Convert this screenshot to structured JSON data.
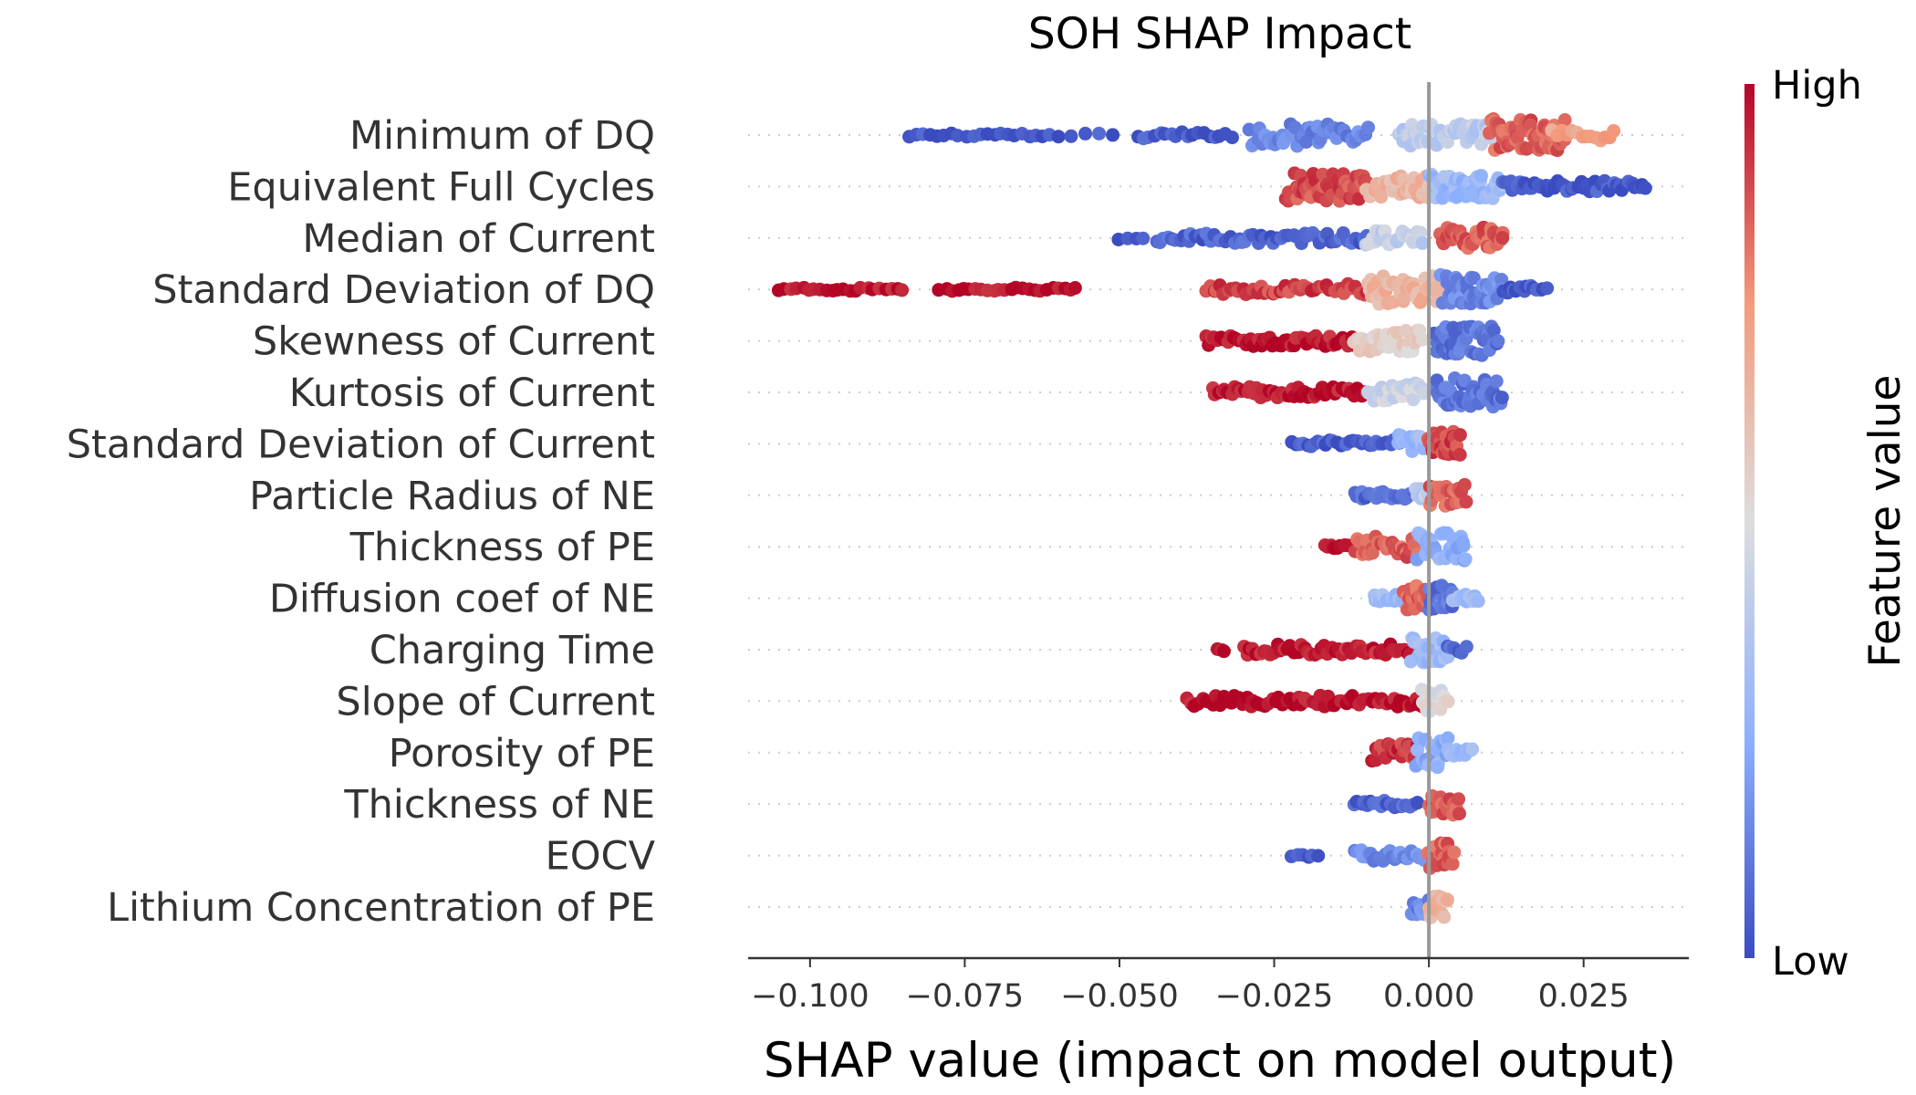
{
  "chart_data": {
    "type": "scatter",
    "title": "SOH SHAP Impact",
    "xlabel": "SHAP value (impact on model output)",
    "ylabel": "",
    "xlim": [
      -0.11,
      0.042
    ],
    "x_ticks": [
      -0.1,
      -0.075,
      -0.05,
      -0.025,
      0.0,
      0.025
    ],
    "x_tick_labels": [
      "−0.100",
      "−0.075",
      "−0.050",
      "−0.025",
      "0.000",
      "0.025"
    ],
    "zero_line": 0.0,
    "grid": false,
    "colorbar": {
      "title": "Feature value",
      "high_label": "High",
      "low_label": "Low",
      "colormap": "coolwarm",
      "low_color": "#3b4cc0",
      "mid_color": "#dddddd",
      "high_color": "#b40426"
    },
    "features": [
      {
        "name": "Minimum of DQ",
        "segments": [
          {
            "x0": -0.084,
            "x1": -0.06,
            "v": 0.02,
            "n": 22,
            "spread": 0.1
          },
          {
            "x0": -0.058,
            "x1": -0.051,
            "v": 0.02,
            "n": 4,
            "spread": 0.1
          },
          {
            "x0": -0.047,
            "x1": -0.032,
            "v": 0.03,
            "n": 18,
            "spread": 0.2
          },
          {
            "x0": -0.029,
            "x1": -0.01,
            "v": 0.15,
            "n": 45,
            "spread": 0.6
          },
          {
            "x0": -0.005,
            "x1": 0.01,
            "v": 0.4,
            "n": 45,
            "spread": 0.6
          },
          {
            "x0": 0.01,
            "x1": 0.022,
            "v": 0.85,
            "n": 60,
            "spread": 0.9
          },
          {
            "x0": 0.02,
            "x1": 0.03,
            "v": 0.7,
            "n": 14,
            "spread": 0.3
          }
        ]
      },
      {
        "name": "Equivalent Full Cycles",
        "segments": [
          {
            "x0": -0.023,
            "x1": -0.01,
            "v": 0.88,
            "n": 55,
            "spread": 0.8
          },
          {
            "x0": -0.01,
            "x1": 0.0,
            "v": 0.65,
            "n": 35,
            "spread": 0.6
          },
          {
            "x0": 0.0,
            "x1": 0.012,
            "v": 0.3,
            "n": 50,
            "spread": 0.7
          },
          {
            "x0": 0.012,
            "x1": 0.035,
            "v": 0.03,
            "n": 45,
            "spread": 0.3
          }
        ]
      },
      {
        "name": "Median of Current",
        "segments": [
          {
            "x0": -0.05,
            "x1": -0.046,
            "v": 0.02,
            "n": 4,
            "spread": 0.1
          },
          {
            "x0": -0.044,
            "x1": -0.01,
            "v": 0.06,
            "n": 55,
            "spread": 0.3
          },
          {
            "x0": -0.01,
            "x1": -0.001,
            "v": 0.42,
            "n": 25,
            "spread": 0.4
          },
          {
            "x0": 0.002,
            "x1": 0.012,
            "v": 0.85,
            "n": 45,
            "spread": 0.6
          }
        ]
      },
      {
        "name": "Standard Deviation of DQ",
        "segments": [
          {
            "x0": -0.105,
            "x1": -0.085,
            "v": 0.98,
            "n": 22,
            "spread": 0.1
          },
          {
            "x0": -0.079,
            "x1": -0.057,
            "v": 0.98,
            "n": 24,
            "spread": 0.1
          },
          {
            "x0": -0.036,
            "x1": -0.01,
            "v": 0.9,
            "n": 45,
            "spread": 0.3
          },
          {
            "x0": -0.01,
            "x1": 0.002,
            "v": 0.65,
            "n": 45,
            "spread": 0.8
          },
          {
            "x0": 0.002,
            "x1": 0.012,
            "v": 0.15,
            "n": 45,
            "spread": 0.8
          },
          {
            "x0": 0.012,
            "x1": 0.019,
            "v": 0.04,
            "n": 14,
            "spread": 0.2
          }
        ]
      },
      {
        "name": "Skewness of Current",
        "segments": [
          {
            "x0": -0.036,
            "x1": -0.012,
            "v": 0.97,
            "n": 50,
            "spread": 0.3
          },
          {
            "x0": -0.012,
            "x1": -0.001,
            "v": 0.55,
            "n": 35,
            "spread": 0.6
          },
          {
            "x0": 0.001,
            "x1": 0.011,
            "v": 0.1,
            "n": 50,
            "spread": 0.8
          }
        ]
      },
      {
        "name": "Kurtosis of Current",
        "segments": [
          {
            "x0": -0.035,
            "x1": -0.01,
            "v": 0.97,
            "n": 50,
            "spread": 0.3
          },
          {
            "x0": -0.01,
            "x1": -0.001,
            "v": 0.45,
            "n": 30,
            "spread": 0.5
          },
          {
            "x0": 0.001,
            "x1": 0.012,
            "v": 0.1,
            "n": 50,
            "spread": 0.8
          }
        ]
      },
      {
        "name": "Standard Deviation of Current",
        "segments": [
          {
            "x0": -0.022,
            "x1": -0.005,
            "v": 0.04,
            "n": 30,
            "spread": 0.2
          },
          {
            "x0": -0.005,
            "x1": 0.0,
            "v": 0.3,
            "n": 16,
            "spread": 0.5
          },
          {
            "x0": 0.0,
            "x1": 0.005,
            "v": 0.9,
            "n": 30,
            "spread": 0.7
          }
        ]
      },
      {
        "name": "Particle Radius of NE",
        "segments": [
          {
            "x0": -0.012,
            "x1": -0.002,
            "v": 0.08,
            "n": 22,
            "spread": 0.2
          },
          {
            "x0": -0.002,
            "x1": 0.0,
            "v": 0.4,
            "n": 8,
            "spread": 0.4
          },
          {
            "x0": 0.0,
            "x1": 0.006,
            "v": 0.85,
            "n": 22,
            "spread": 0.6
          }
        ]
      },
      {
        "name": "Thickness of PE",
        "segments": [
          {
            "x0": -0.017,
            "x1": -0.013,
            "v": 0.98,
            "n": 8,
            "spread": 0.1
          },
          {
            "x0": -0.012,
            "x1": -0.002,
            "v": 0.85,
            "n": 30,
            "spread": 0.6
          },
          {
            "x0": -0.002,
            "x1": 0.006,
            "v": 0.25,
            "n": 35,
            "spread": 0.8
          }
        ]
      },
      {
        "name": "Diffusion coef of NE",
        "segments": [
          {
            "x0": -0.009,
            "x1": -0.004,
            "v": 0.3,
            "n": 14,
            "spread": 0.2
          },
          {
            "x0": -0.004,
            "x1": 0.0,
            "v": 0.85,
            "n": 25,
            "spread": 0.7
          },
          {
            "x0": 0.0,
            "x1": 0.004,
            "v": 0.1,
            "n": 22,
            "spread": 0.7
          },
          {
            "x0": 0.004,
            "x1": 0.008,
            "v": 0.3,
            "n": 12,
            "spread": 0.2
          }
        ]
      },
      {
        "name": "Charging Time",
        "segments": [
          {
            "x0": -0.034,
            "x1": -0.033,
            "v": 0.98,
            "n": 3,
            "spread": 0.1
          },
          {
            "x0": -0.03,
            "x1": -0.003,
            "v": 0.96,
            "n": 50,
            "spread": 0.3
          },
          {
            "x0": -0.003,
            "x1": 0.003,
            "v": 0.3,
            "n": 25,
            "spread": 0.7
          },
          {
            "x0": 0.003,
            "x1": 0.006,
            "v": 0.06,
            "n": 6,
            "spread": 0.2
          }
        ]
      },
      {
        "name": "Slope of Current",
        "segments": [
          {
            "x0": -0.039,
            "x1": -0.001,
            "v": 0.98,
            "n": 65,
            "spread": 0.3
          },
          {
            "x0": -0.001,
            "x1": 0.003,
            "v": 0.5,
            "n": 20,
            "spread": 0.7
          }
        ]
      },
      {
        "name": "Porosity of PE",
        "segments": [
          {
            "x0": -0.009,
            "x1": -0.002,
            "v": 0.92,
            "n": 22,
            "spread": 0.5
          },
          {
            "x0": -0.002,
            "x1": 0.003,
            "v": 0.25,
            "n": 22,
            "spread": 0.8
          },
          {
            "x0": 0.003,
            "x1": 0.007,
            "v": 0.3,
            "n": 10,
            "spread": 0.2
          }
        ]
      },
      {
        "name": "Thickness of NE",
        "segments": [
          {
            "x0": -0.012,
            "x1": -0.002,
            "v": 0.06,
            "n": 20,
            "spread": 0.2
          },
          {
            "x0": 0.0,
            "x1": 0.005,
            "v": 0.85,
            "n": 22,
            "spread": 0.6
          }
        ]
      },
      {
        "name": "EOCV",
        "segments": [
          {
            "x0": -0.022,
            "x1": -0.018,
            "v": 0.04,
            "n": 6,
            "spread": 0.1
          },
          {
            "x0": -0.012,
            "x1": -0.001,
            "v": 0.15,
            "n": 25,
            "spread": 0.3
          },
          {
            "x0": 0.0,
            "x1": 0.004,
            "v": 0.85,
            "n": 22,
            "spread": 0.7
          }
        ]
      },
      {
        "name": "Lithium Concentration of PE",
        "segments": [
          {
            "x0": -0.003,
            "x1": 0.0,
            "v": 0.15,
            "n": 12,
            "spread": 0.4
          },
          {
            "x0": 0.0,
            "x1": 0.003,
            "v": 0.65,
            "n": 14,
            "spread": 0.6
          }
        ]
      }
    ]
  }
}
